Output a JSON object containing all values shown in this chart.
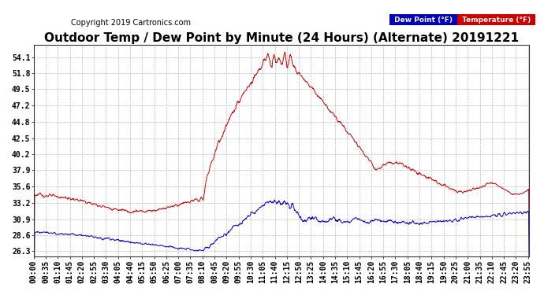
{
  "title": "Outdoor Temp / Dew Point by Minute (24 Hours) (Alternate) 20191221",
  "copyright": "Copyright 2019 Cartronics.com",
  "legend_dew": "Dew Point (°F)",
  "legend_temp": "Temperature (°F)",
  "dew_color": "#0000cc",
  "temp_color": "#cc0000",
  "background_color": "#ffffff",
  "plot_bg_color": "#ffffff",
  "grid_color": "#bbbbbb",
  "yticks": [
    26.3,
    28.6,
    30.9,
    33.2,
    35.6,
    37.9,
    40.2,
    42.5,
    44.8,
    47.2,
    49.5,
    51.8,
    54.1
  ],
  "ylim": [
    25.5,
    55.8
  ],
  "minutes_total": 1440,
  "title_fontsize": 11,
  "tick_fontsize": 7,
  "copyright_fontsize": 7,
  "xtick_step": 35
}
